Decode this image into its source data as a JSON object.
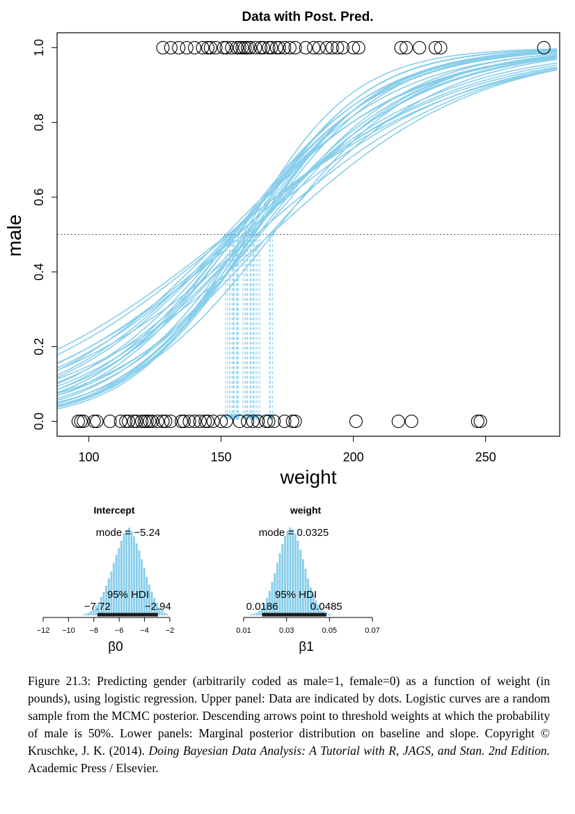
{
  "chart_data": [
    {
      "type": "scatter",
      "title": "Data with Post. Pred.",
      "xlabel": "weight",
      "ylabel": "male",
      "xlim": [
        88,
        278
      ],
      "ylim": [
        -0.04,
        1.04
      ],
      "xticks": [
        "100",
        "150",
        "200",
        "250"
      ],
      "yticks": [
        "0.0",
        "0.2",
        "0.4",
        "0.6",
        "0.8",
        "1.0"
      ],
      "grid": false,
      "threshold_line_y": 0.5,
      "curve_color": "#87CEEB",
      "points_male": [
        128,
        131,
        134,
        137,
        140,
        143,
        145,
        146,
        148,
        151,
        152,
        154,
        156,
        157,
        158,
        159,
        160,
        161,
        163,
        165,
        166,
        168,
        169,
        171,
        172,
        174,
        176,
        178,
        182,
        185,
        187,
        190,
        192,
        194,
        196,
        200,
        202,
        218,
        220,
        225,
        231,
        233,
        272
      ],
      "points_female": [
        96,
        97,
        98,
        102,
        103,
        108,
        112,
        114,
        115,
        117,
        118,
        120,
        121,
        122,
        123,
        124,
        126,
        128,
        129,
        131,
        135,
        136,
        138,
        140,
        142,
        144,
        145,
        147,
        150,
        152,
        157,
        160,
        162,
        164,
        167,
        168,
        170,
        174,
        177,
        178,
        201,
        217,
        222,
        247,
        248
      ],
      "posterior_curves": [
        {
          "b0": -5.24,
          "b1": 0.0325
        },
        {
          "b0": -4.6,
          "b1": 0.03
        },
        {
          "b0": -5.9,
          "b1": 0.036
        },
        {
          "b0": -6.8,
          "b1": 0.042
        },
        {
          "b0": -3.9,
          "b1": 0.025
        },
        {
          "b0": -4.3,
          "b1": 0.0255
        },
        {
          "b0": -5.0,
          "b1": 0.031
        },
        {
          "b0": -7.2,
          "b1": 0.045
        },
        {
          "b0": -6.1,
          "b1": 0.036
        },
        {
          "b0": -4.8,
          "b1": 0.03
        },
        {
          "b0": -5.5,
          "b1": 0.0355
        },
        {
          "b0": -3.6,
          "b1": 0.0235
        },
        {
          "b0": -6.5,
          "b1": 0.04
        },
        {
          "b0": -4.1,
          "b1": 0.0262
        },
        {
          "b0": -5.8,
          "b1": 0.0375
        },
        {
          "b0": -7.6,
          "b1": 0.048
        },
        {
          "b0": -3.4,
          "b1": 0.0223
        },
        {
          "b0": -5.3,
          "b1": 0.0315
        },
        {
          "b0": -6.0,
          "b1": 0.0385
        },
        {
          "b0": -4.4,
          "b1": 0.029
        },
        {
          "b0": -6.9,
          "b1": 0.0425
        },
        {
          "b0": -5.6,
          "b1": 0.034
        },
        {
          "b0": -4.0,
          "b1": 0.0245
        },
        {
          "b0": -6.3,
          "b1": 0.0395
        },
        {
          "b0": -5.1,
          "b1": 0.033
        },
        {
          "b0": -7.0,
          "b1": 0.044
        },
        {
          "b0": -4.7,
          "b1": 0.0305
        },
        {
          "b0": -3.8,
          "b1": 0.024
        },
        {
          "b0": -5.7,
          "b1": 0.0365
        },
        {
          "b0": -6.6,
          "b1": 0.041
        }
      ]
    },
    {
      "type": "bar",
      "title": "Intercept",
      "xlabel": "β0",
      "mode_label": "mode = −5.24",
      "hdi_label": "95% HDI",
      "hdi_low_label": "−7.72",
      "hdi_high_label": "−2.94",
      "mode": -5.24,
      "hdi": [
        -7.72,
        -2.94
      ],
      "xlim": [
        -12,
        -2
      ],
      "xticks": [
        {
          "v": -12,
          "label": "−12"
        },
        {
          "v": -10,
          "label": "−10"
        },
        {
          "v": -8,
          "label": "−8"
        },
        {
          "v": -6,
          "label": "−6"
        },
        {
          "v": -4,
          "label": "−4"
        },
        {
          "v": -2,
          "label": "−2"
        }
      ],
      "bin_width": 0.2,
      "bins": [
        {
          "x": -8.8,
          "h": 0.01
        },
        {
          "x": -8.6,
          "h": 0.02
        },
        {
          "x": -8.4,
          "h": 0.03
        },
        {
          "x": -8.2,
          "h": 0.05
        },
        {
          "x": -8.0,
          "h": 0.07
        },
        {
          "x": -7.8,
          "h": 0.11
        },
        {
          "x": -7.6,
          "h": 0.15
        },
        {
          "x": -7.4,
          "h": 0.21
        },
        {
          "x": -7.2,
          "h": 0.27
        },
        {
          "x": -7.0,
          "h": 0.34
        },
        {
          "x": -6.8,
          "h": 0.42
        },
        {
          "x": -6.6,
          "h": 0.5
        },
        {
          "x": -6.4,
          "h": 0.6
        },
        {
          "x": -6.2,
          "h": 0.69
        },
        {
          "x": -6.0,
          "h": 0.77
        },
        {
          "x": -5.8,
          "h": 0.85
        },
        {
          "x": -5.6,
          "h": 0.93
        },
        {
          "x": -5.4,
          "h": 0.97
        },
        {
          "x": -5.2,
          "h": 1.0
        },
        {
          "x": -5.0,
          "h": 0.96
        },
        {
          "x": -4.8,
          "h": 0.9
        },
        {
          "x": -4.6,
          "h": 0.82
        },
        {
          "x": -4.4,
          "h": 0.74
        },
        {
          "x": -4.2,
          "h": 0.64
        },
        {
          "x": -4.0,
          "h": 0.54
        },
        {
          "x": -3.8,
          "h": 0.44
        },
        {
          "x": -3.6,
          "h": 0.35
        },
        {
          "x": -3.4,
          "h": 0.27
        },
        {
          "x": -3.2,
          "h": 0.2
        },
        {
          "x": -3.0,
          "h": 0.14
        },
        {
          "x": -2.8,
          "h": 0.09
        },
        {
          "x": -2.6,
          "h": 0.06
        },
        {
          "x": -2.4,
          "h": 0.03
        },
        {
          "x": -2.2,
          "h": 0.02
        }
      ]
    },
    {
      "type": "bar",
      "title": "weight",
      "xlabel": "β1",
      "mode_label": "mode = 0.0325",
      "hdi_label": "95% HDI",
      "hdi_low_label": "0.0186",
      "hdi_high_label": "0.0485",
      "mode": 0.0325,
      "hdi": [
        0.0186,
        0.0485
      ],
      "xlim": [
        0.01,
        0.07
      ],
      "xticks": [
        {
          "v": 0.01,
          "label": "0.01"
        },
        {
          "v": 0.03,
          "label": "0.03"
        },
        {
          "v": 0.05,
          "label": "0.05"
        },
        {
          "v": 0.07,
          "label": "0.07"
        }
      ],
      "bin_width": 0.0012,
      "bins": [
        {
          "x": 0.0138,
          "h": 0.01
        },
        {
          "x": 0.015,
          "h": 0.02
        },
        {
          "x": 0.0162,
          "h": 0.03
        },
        {
          "x": 0.0174,
          "h": 0.05
        },
        {
          "x": 0.0186,
          "h": 0.08
        },
        {
          "x": 0.0198,
          "h": 0.13
        },
        {
          "x": 0.021,
          "h": 0.2
        },
        {
          "x": 0.0222,
          "h": 0.28
        },
        {
          "x": 0.0234,
          "h": 0.38
        },
        {
          "x": 0.0246,
          "h": 0.48
        },
        {
          "x": 0.0258,
          "h": 0.6
        },
        {
          "x": 0.027,
          "h": 0.71
        },
        {
          "x": 0.0282,
          "h": 0.81
        },
        {
          "x": 0.0294,
          "h": 0.9
        },
        {
          "x": 0.0306,
          "h": 0.96
        },
        {
          "x": 0.0318,
          "h": 1.0
        },
        {
          "x": 0.033,
          "h": 0.98
        },
        {
          "x": 0.0342,
          "h": 0.93
        },
        {
          "x": 0.0354,
          "h": 0.85
        },
        {
          "x": 0.0366,
          "h": 0.75
        },
        {
          "x": 0.0378,
          "h": 0.64
        },
        {
          "x": 0.039,
          "h": 0.53
        },
        {
          "x": 0.0402,
          "h": 0.42
        },
        {
          "x": 0.0414,
          "h": 0.32
        },
        {
          "x": 0.0426,
          "h": 0.24
        },
        {
          "x": 0.0438,
          "h": 0.17
        },
        {
          "x": 0.045,
          "h": 0.12
        },
        {
          "x": 0.0462,
          "h": 0.08
        },
        {
          "x": 0.0474,
          "h": 0.05
        },
        {
          "x": 0.0486,
          "h": 0.03
        },
        {
          "x": 0.0498,
          "h": 0.02
        },
        {
          "x": 0.051,
          "h": 0.01
        }
      ]
    }
  ],
  "caption": {
    "part1": "Figure 21.3: Predicting gender (arbitrarily coded as male=1, female=0) as a function of weight (in pounds), using logistic regression. Upper panel: Data are indicated by dots. Logistic curves are a random sample from the MCMC posterior. Descending arrows point to threshold weights at which the probability of male is 50%. Lower panels: Marginal posterior distribution on baseline and slope. Copyright © Kruschke, J. K. (2014). ",
    "book_title": "Doing Bayesian Data Analysis: A Tutorial with R, JAGS, and Stan. 2nd Edition.",
    "part2": " Academic Press / Elsevier."
  },
  "colors": {
    "curve": "#87CEEB",
    "hist_bar": "#87CEEB",
    "axis": "#000000",
    "points": "#000000"
  }
}
